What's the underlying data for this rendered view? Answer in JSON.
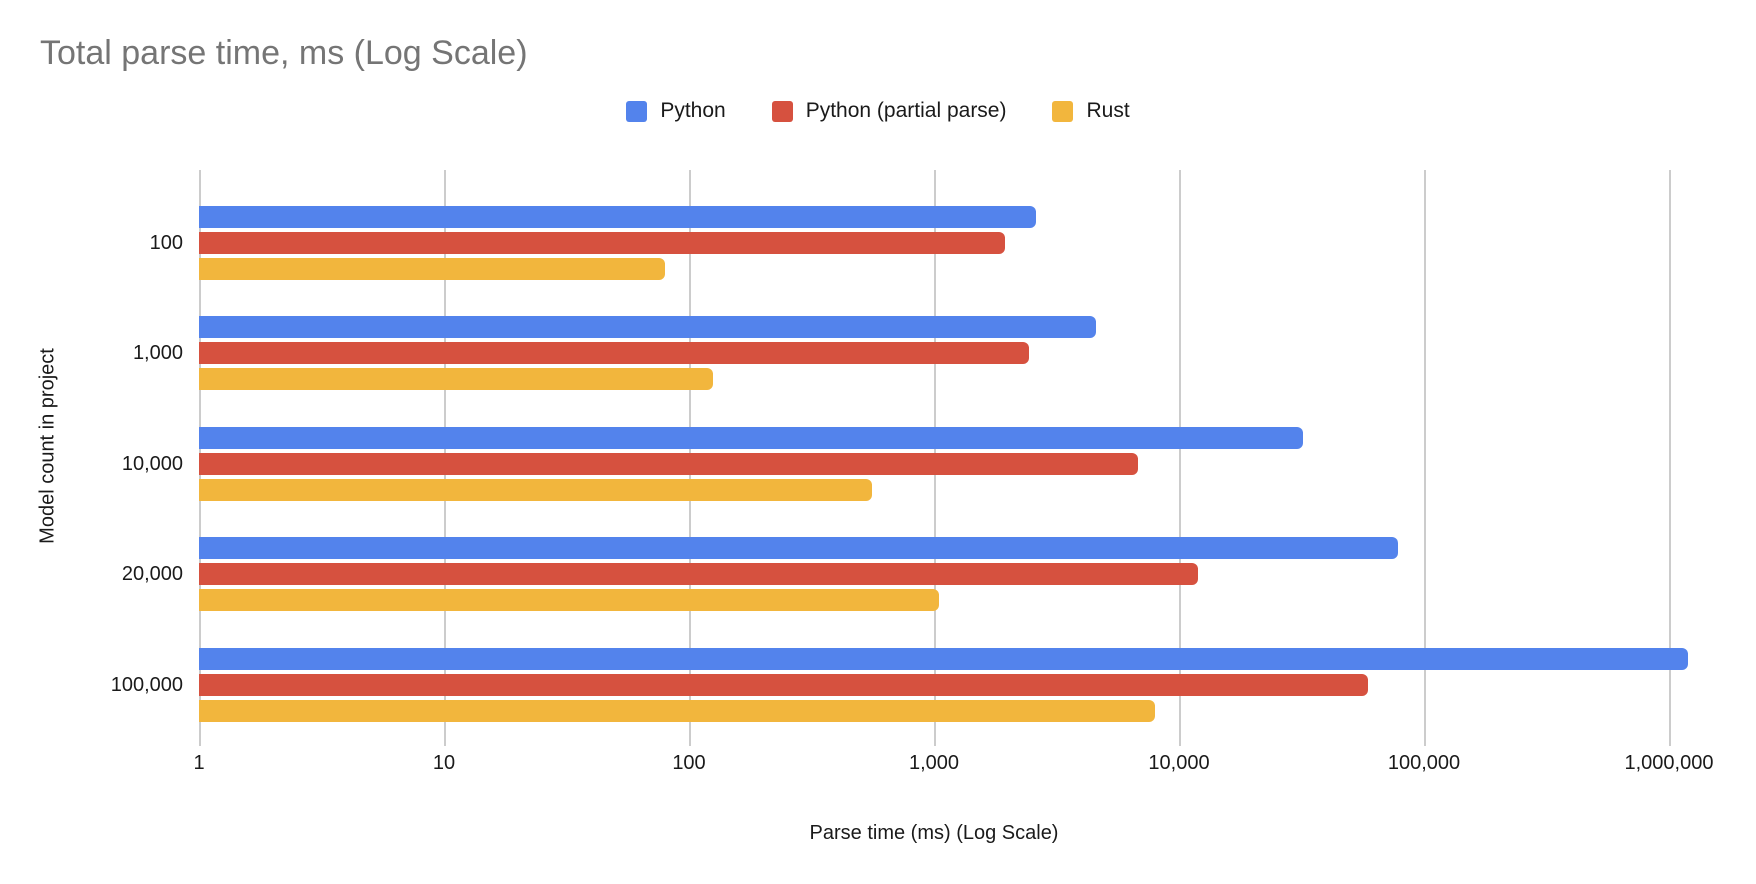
{
  "title": "Total parse time, ms (Log Scale)",
  "legend": [
    {
      "label": "Python",
      "color": "#5383EC"
    },
    {
      "label": "Python (partial parse)",
      "color": "#D6513F"
    },
    {
      "label": "Rust",
      "color": "#F2B63D"
    }
  ],
  "chart_data": {
    "type": "bar",
    "orientation": "horizontal",
    "title": "Total parse time, ms (Log Scale)",
    "xlabel": "Parse time (ms) (Log Scale)",
    "ylabel": "Model count in project",
    "x_scale": "log",
    "xlim": [
      1,
      1000000
    ],
    "x_ticks": [
      "1",
      "10",
      "100",
      "1,000",
      "10,000",
      "100,000",
      "1,000,000"
    ],
    "grid": true,
    "legend_position": "top",
    "categories": [
      "100",
      "1,000",
      "10,000",
      "20,000",
      "100,000"
    ],
    "series": [
      {
        "name": "Python",
        "color": "#5383EC",
        "values": [
          2600,
          4600,
          32000,
          78000,
          1200000
        ]
      },
      {
        "name": "Python (partial parse)",
        "color": "#D6513F",
        "values": [
          1950,
          2450,
          6800,
          12000,
          59000
        ]
      },
      {
        "name": "Rust",
        "color": "#F2B63D",
        "values": [
          80,
          125,
          560,
          1050,
          8000
        ]
      }
    ]
  },
  "colors": {
    "title_text": "#757575",
    "axis_text": "#1a1a1a",
    "gridline": "#cccccc",
    "background": "#ffffff"
  }
}
